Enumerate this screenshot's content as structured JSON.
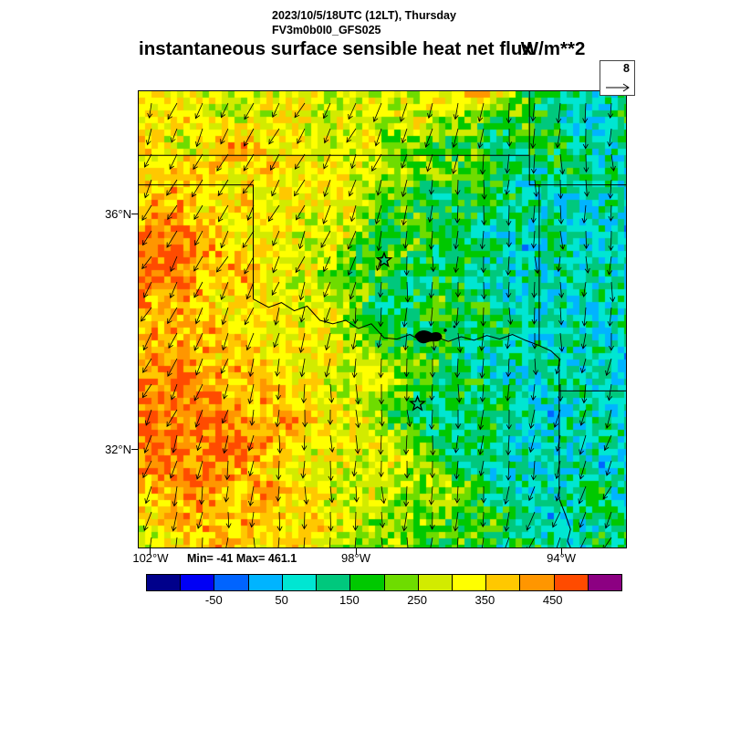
{
  "header": {
    "datetime_line": "2023/10/5/18UTC (12LT), Thursday",
    "model_line": "FV3m0b0I0_GFS025",
    "title": "instantaneous surface sensible heat net flux",
    "units": "W/m**2"
  },
  "wind_reference": {
    "value": "8"
  },
  "stats": {
    "text": "Min= -41 Max= 461.1",
    "min": -41,
    "max": 461.1
  },
  "axes": {
    "lat_ticks": [
      {
        "label": "36°N",
        "lat": 36
      },
      {
        "label": "32°N",
        "lat": 32
      }
    ],
    "lon_ticks": [
      {
        "label": "102°W",
        "lon": -102
      },
      {
        "label": "98°W",
        "lon": -98
      },
      {
        "label": "94°W",
        "lon": -94
      }
    ]
  },
  "colorbar": {
    "range": [
      -150,
      550
    ],
    "step": 50,
    "colors": [
      "#00008b",
      "#0000f5",
      "#0064ff",
      "#00b4ff",
      "#00e6d2",
      "#00c87d",
      "#00c800",
      "#6edc00",
      "#d2eb00",
      "#ffff00",
      "#ffc800",
      "#ff9600",
      "#ff4b00",
      "#8c0082"
    ],
    "tick_values": [
      -50,
      50,
      150,
      250,
      350,
      450
    ],
    "tick_labels": [
      "-50",
      "50",
      "150",
      "250",
      "350",
      "450"
    ]
  },
  "chart_data": {
    "type": "heatmap",
    "title": "instantaneous surface sensible heat net flux",
    "units": "W/m**2",
    "lon_range": [
      -102.23,
      -92.74
    ],
    "lat_range": [
      38.09,
      30.34
    ],
    "min": -41,
    "max": 461.1,
    "grid_note": "approximate flux values W/m**2, rows from north (38.1N) to south (30.3N), cols from west (102.2W) to east (92.7W)",
    "values": [
      [
        320,
        350,
        300,
        260,
        320,
        300,
        340,
        310,
        260,
        320,
        300,
        260,
        330,
        460,
        330,
        210,
        160,
        110,
        60,
        110
      ],
      [
        300,
        330,
        360,
        310,
        260,
        310,
        330,
        260,
        310,
        260,
        310,
        320,
        260,
        210,
        160,
        210,
        110,
        60,
        110,
        160
      ],
      [
        360,
        310,
        260,
        360,
        410,
        330,
        310,
        320,
        260,
        310,
        210,
        260,
        160,
        210,
        110,
        160,
        210,
        110,
        60,
        110
      ],
      [
        310,
        360,
        410,
        360,
        310,
        360,
        320,
        310,
        320,
        260,
        260,
        210,
        260,
        160,
        210,
        60,
        110,
        160,
        110,
        60
      ],
      [
        360,
        410,
        360,
        310,
        360,
        310,
        330,
        320,
        310,
        260,
        210,
        160,
        110,
        210,
        160,
        110,
        60,
        110,
        60,
        110
      ],
      [
        410,
        460,
        410,
        360,
        310,
        330,
        310,
        260,
        310,
        210,
        160,
        210,
        160,
        110,
        60,
        110,
        110,
        60,
        110,
        60
      ],
      [
        460,
        470,
        440,
        410,
        360,
        310,
        330,
        310,
        260,
        160,
        210,
        160,
        110,
        160,
        110,
        60,
        110,
        110,
        60,
        110
      ],
      [
        430,
        460,
        410,
        360,
        410,
        330,
        310,
        260,
        210,
        210,
        160,
        110,
        160,
        110,
        60,
        110,
        60,
        110,
        110,
        60
      ],
      [
        410,
        360,
        410,
        330,
        310,
        330,
        310,
        320,
        260,
        160,
        110,
        160,
        210,
        160,
        110,
        60,
        110,
        60,
        110,
        110
      ],
      [
        360,
        410,
        360,
        410,
        330,
        310,
        330,
        310,
        260,
        210,
        160,
        110,
        160,
        110,
        160,
        110,
        60,
        110,
        60,
        110
      ],
      [
        410,
        430,
        410,
        360,
        410,
        330,
        310,
        330,
        310,
        260,
        210,
        260,
        160,
        110,
        60,
        110,
        110,
        60,
        110,
        60
      ],
      [
        430,
        410,
        460,
        410,
        360,
        410,
        330,
        310,
        260,
        310,
        260,
        160,
        110,
        160,
        110,
        60,
        110,
        110,
        60,
        110
      ],
      [
        460,
        430,
        410,
        460,
        410,
        360,
        410,
        330,
        310,
        260,
        160,
        110,
        160,
        110,
        160,
        110,
        60,
        110,
        110,
        60
      ],
      [
        430,
        460,
        440,
        410,
        460,
        410,
        360,
        310,
        330,
        310,
        260,
        210,
        110,
        160,
        110,
        60,
        110,
        60,
        110,
        110
      ],
      [
        410,
        430,
        410,
        460,
        410,
        360,
        310,
        330,
        310,
        260,
        310,
        260,
        210,
        110,
        60,
        110,
        60,
        110,
        60,
        110
      ],
      [
        360,
        410,
        430,
        410,
        360,
        410,
        360,
        310,
        260,
        310,
        260,
        210,
        260,
        210,
        110,
        60,
        110,
        110,
        160,
        60
      ],
      [
        310,
        360,
        410,
        360,
        410,
        360,
        310,
        360,
        310,
        260,
        210,
        260,
        210,
        160,
        210,
        110,
        60,
        110,
        110,
        160
      ],
      [
        260,
        310,
        360,
        410,
        360,
        310,
        360,
        310,
        260,
        210,
        260,
        210,
        160,
        210,
        110,
        160,
        110,
        60,
        160,
        110
      ]
    ],
    "wind": {
      "reference_speed": 8,
      "pattern": "northerly flow; arrows point south to southwest across domain"
    },
    "markers": [
      {
        "type": "star",
        "lon": -97.45,
        "lat": 35.22
      },
      {
        "type": "star",
        "lon": -96.8,
        "lat": 32.78
      }
    ]
  }
}
